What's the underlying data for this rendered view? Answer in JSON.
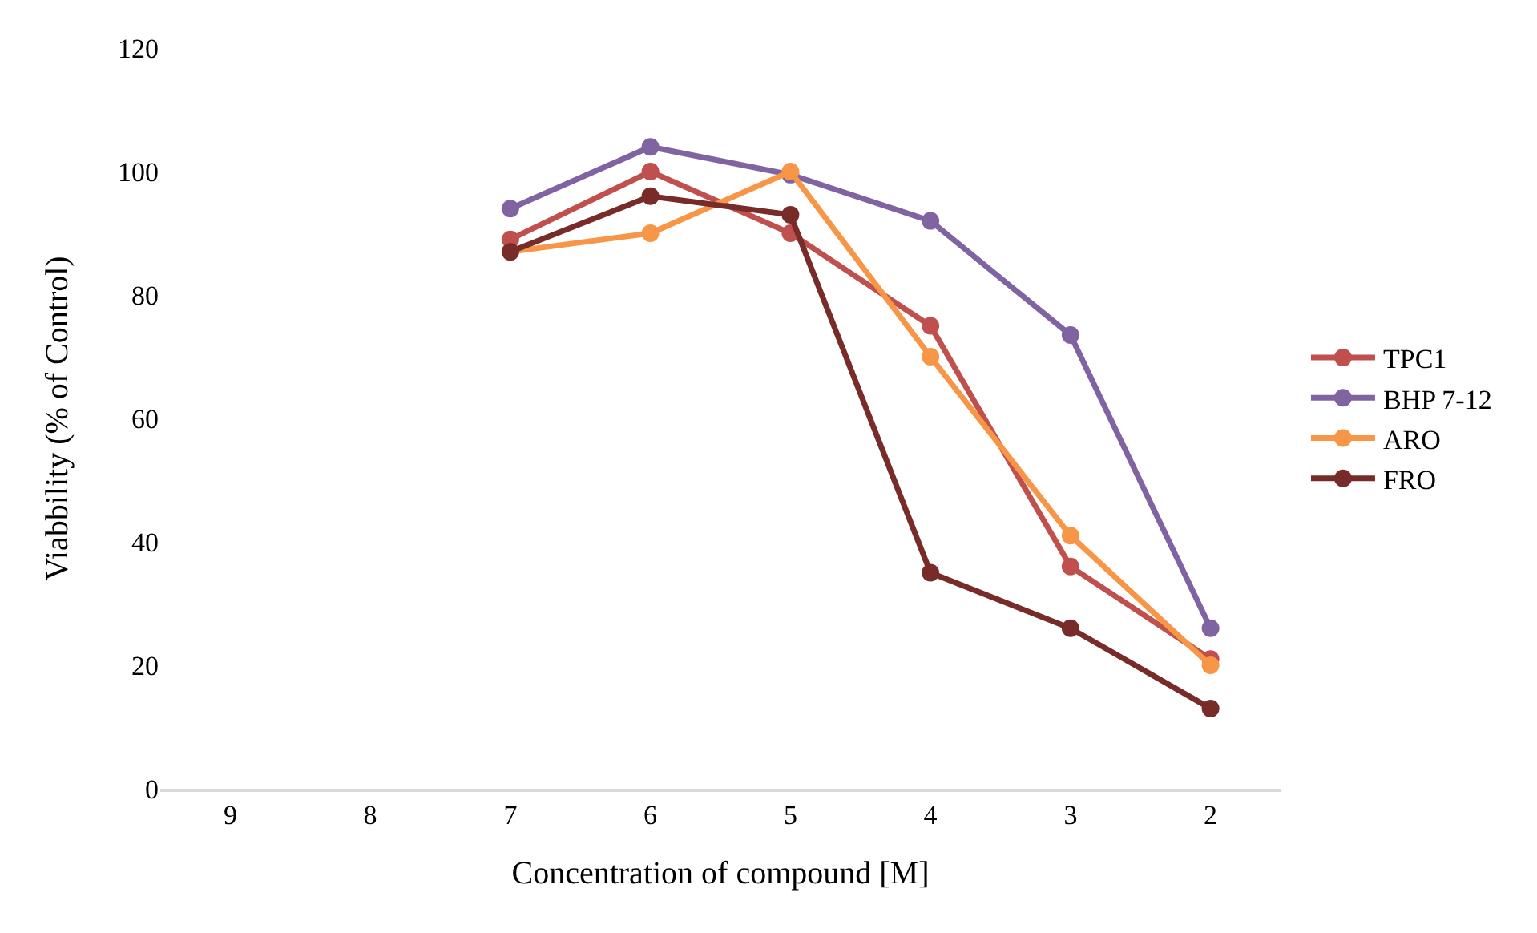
{
  "chart_data": {
    "type": "line",
    "xlabel": "Concentration of compound [M]",
    "ylabel": "Viabbility (% of Control)",
    "categories": [
      "9",
      "8",
      "7",
      "6",
      "5",
      "4",
      "3",
      "2"
    ],
    "ylim": [
      0,
      120
    ],
    "yticks": [
      0,
      20,
      40,
      60,
      80,
      100,
      120
    ],
    "legend": "right",
    "marker": "circle",
    "line_style": "solid",
    "series": [
      {
        "name": "TPC1",
        "color": "#c0504d",
        "values": [
          null,
          null,
          89,
          100,
          90,
          75,
          36,
          21
        ]
      },
      {
        "name": "BHP 7-12",
        "color": "#8064a2",
        "values": [
          null,
          null,
          94,
          104,
          99.5,
          92,
          73.5,
          26
        ]
      },
      {
        "name": "ARO",
        "color": "#f79646",
        "values": [
          null,
          null,
          87,
          90,
          100,
          70,
          41,
          20
        ]
      },
      {
        "name": "FRO",
        "color": "#772c2a",
        "values": [
          null,
          null,
          87,
          96,
          93,
          35,
          26,
          13
        ]
      }
    ]
  }
}
